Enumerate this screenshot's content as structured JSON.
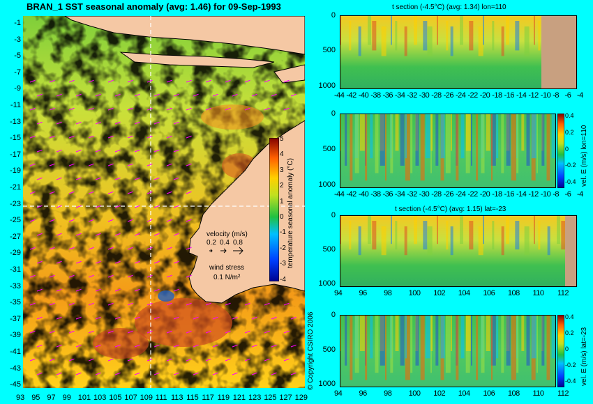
{
  "chart_data": [
    {
      "type": "heatmap",
      "title": "BRAN_1  SST seasonal anomaly (avg: 1.46) for 09-Sep-1993",
      "x_ticks": [
        "93",
        "95",
        "97",
        "99",
        "101",
        "103",
        "105",
        "107",
        "109",
        "111",
        "113",
        "115",
        "117",
        "119",
        "121",
        "123",
        "125",
        "127",
        "129"
      ],
      "y_ticks": [
        "-1",
        "-3",
        "-5",
        "-7",
        "-9",
        "-11",
        "-13",
        "-15",
        "-17",
        "-19",
        "-21",
        "-23",
        "-25",
        "-27",
        "-29",
        "-31",
        "-33",
        "-35",
        "-37",
        "-39",
        "-41",
        "-43",
        "-45"
      ],
      "colorbar": {
        "label": "temperature seasonal anomaly (°C)",
        "ticks": [
          "5",
          "4",
          "3",
          "2",
          "1",
          "0",
          "-1",
          "-2",
          "-3",
          "-4"
        ],
        "range": [
          -4,
          5
        ]
      },
      "velocity_legend": {
        "title": "velocity (m/s)",
        "values": [
          "0.2",
          "0.4",
          "0.8"
        ]
      },
      "wind_legend": {
        "title": "wind stress",
        "value": "0.1 N/m²"
      },
      "colors": {
        "land": "#f5c8a4",
        "vector": "#ff00ff",
        "guide": "#ffffff"
      }
    },
    {
      "type": "heatmap",
      "title": "t section (-4.5°C) (avg: 1.34) lon=110",
      "x_ticks": [
        "-44",
        "-42",
        "-40",
        "-38",
        "-36",
        "-34",
        "-32",
        "-30",
        "-28",
        "-26",
        "-24",
        "-22",
        "-20",
        "-18",
        "-16",
        "-14",
        "-12",
        "-10",
        "-8",
        "-6",
        "-4"
      ],
      "y_ticks": [
        "0",
        "500",
        "1000"
      ]
    },
    {
      "type": "heatmap",
      "title": "",
      "x_ticks": [
        "-44",
        "-42",
        "-40",
        "-38",
        "-36",
        "-34",
        "-32",
        "-30",
        "-28",
        "-26",
        "-24",
        "-22",
        "-20",
        "-18",
        "-16",
        "-14",
        "-12",
        "-10",
        "-8",
        "-6",
        "-4"
      ],
      "y_ticks": [
        "0",
        "500",
        "1000"
      ],
      "colorbar": {
        "label": "vel. E (m/s) lon=110",
        "ticks": [
          "0.4",
          "0.2",
          "0",
          "-0.2",
          "-0.4"
        ]
      }
    },
    {
      "type": "heatmap",
      "title": "t section (-4.5°C) (avg: 1.15) lat=-23",
      "x_ticks": [
        "94",
        "96",
        "98",
        "100",
        "102",
        "104",
        "106",
        "108",
        "110",
        "112"
      ],
      "y_ticks": [
        "0",
        "500",
        "1000"
      ]
    },
    {
      "type": "heatmap",
      "title": "",
      "x_ticks": [
        "94",
        "96",
        "98",
        "100",
        "102",
        "104",
        "106",
        "108",
        "110",
        "112"
      ],
      "y_ticks": [
        "0",
        "500",
        "1000"
      ],
      "colorbar": {
        "label": "vel. E (m/s) lat=-23",
        "ticks": [
          "0.4",
          "0.2",
          "0",
          "-0.2",
          "-0.4"
        ]
      }
    }
  ],
  "copyright": "© Copyright CSIRO 2006"
}
